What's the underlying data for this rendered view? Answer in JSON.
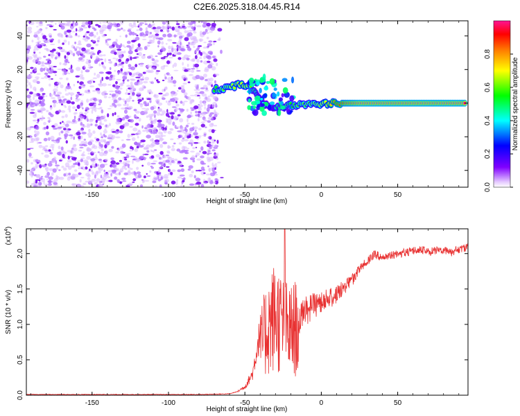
{
  "page_title": "C2E6.2025.318.04.45.R14",
  "chart_data": [
    {
      "type": "heatmap",
      "xlabel": "Height of straight line (km)",
      "ylabel": "Frequency (Hz)",
      "xlim": [
        -193,
        96
      ],
      "ylim": [
        -50,
        49
      ],
      "x_ticks": [
        -150,
        -100,
        -50,
        0,
        50
      ],
      "x_tick_labels": [
        "-150",
        "-100",
        "-50",
        "0",
        "50"
      ],
      "y_ticks": [
        -40,
        -20,
        0,
        20,
        40
      ],
      "y_tick_labels": [
        "-40",
        "-20",
        "0",
        "20",
        "40"
      ],
      "noise_region_x": [
        -193,
        -68
      ],
      "ridge": [
        {
          "x": -70,
          "y": 8,
          "amp": 0.55
        },
        {
          "x": -64,
          "y": 9,
          "amp": 0.6
        },
        {
          "x": -58,
          "y": 10,
          "amp": 0.65
        },
        {
          "x": -52,
          "y": 11,
          "amp": 0.7
        },
        {
          "x": -47,
          "y": 11,
          "amp": 0.65
        },
        {
          "x": -43,
          "y": 6,
          "amp": 0.45
        },
        {
          "x": -40,
          "y": 2,
          "amp": 0.4
        },
        {
          "x": -36,
          "y": -1,
          "amp": 0.4
        },
        {
          "x": -31,
          "y": -3,
          "amp": 0.45
        },
        {
          "x": -26,
          "y": -2,
          "amp": 0.5
        },
        {
          "x": -20,
          "y": -1,
          "amp": 0.55
        },
        {
          "x": -14,
          "y": -1,
          "amp": 0.6
        },
        {
          "x": -8,
          "y": -1,
          "amp": 0.6
        },
        {
          "x": -2,
          "y": -1,
          "amp": 0.65
        },
        {
          "x": 4,
          "y": 0,
          "amp": 0.7
        },
        {
          "x": 10,
          "y": 0,
          "amp": 0.85
        },
        {
          "x": 16,
          "y": 0,
          "amp": 0.95
        },
        {
          "x": 25,
          "y": 0,
          "amp": 1.0
        },
        {
          "x": 40,
          "y": 0,
          "amp": 1.0
        },
        {
          "x": 60,
          "y": 0,
          "amp": 1.0
        },
        {
          "x": 80,
          "y": 0,
          "amp": 1.0
        },
        {
          "x": 95,
          "y": 0,
          "amp": 1.0
        }
      ],
      "colorbar": {
        "label": "Normalized spectral amplitude",
        "range": [
          0,
          1
        ],
        "ticks": [
          0,
          0.2,
          0.4,
          0.6,
          0.8
        ],
        "tick_labels": [
          "0.0",
          "0.2",
          "0.4",
          "0.6",
          "0.8"
        ],
        "colors": [
          "#ffffff",
          "#8000ff",
          "#0000ff",
          "#00ffff",
          "#00ff00",
          "#ffff00",
          "#ff8000",
          "#ff0000",
          "#ff0080"
        ]
      }
    },
    {
      "type": "line",
      "xlabel": "Height of straight line (km)",
      "ylabel": "SNR (10 * v/v)",
      "scale_label": "(x10",
      "scale_exponent": "4",
      "scale_close": ")",
      "xlim": [
        -193,
        96
      ],
      "ylim": [
        0,
        2.35
      ],
      "x_ticks": [
        -150,
        -100,
        -50,
        0,
        50
      ],
      "x_tick_labels": [
        "-150",
        "-100",
        "-50",
        "0",
        "50"
      ],
      "y_ticks": [
        0,
        0.5,
        1.0,
        1.5,
        2.0
      ],
      "y_tick_labels": [
        "0.0",
        "0.5",
        "1.0",
        "1.5",
        "2.0"
      ],
      "color": "#e83030",
      "envelope_x": [
        -193,
        -80,
        -60,
        -55,
        -50,
        -45,
        -40,
        -35,
        -30,
        -25,
        -20,
        -15,
        -10,
        -5,
        0,
        5,
        10,
        15,
        20,
        25,
        30,
        35,
        40,
        45,
        50,
        55,
        60,
        65,
        70,
        75,
        80,
        85,
        90,
        96
      ],
      "envelope_y": [
        0.01,
        0.01,
        0.02,
        0.05,
        0.12,
        0.3,
        0.9,
        1.3,
        1.5,
        1.3,
        1.2,
        1.3,
        1.4,
        1.45,
        1.5,
        1.52,
        1.56,
        1.65,
        1.72,
        1.85,
        1.95,
        2.05,
        2.0,
        2.02,
        2.05,
        2.08,
        2.1,
        2.12,
        2.08,
        2.1,
        2.12,
        2.08,
        2.12,
        2.15
      ],
      "peak": {
        "x": -24,
        "y": 2.35
      }
    }
  ]
}
